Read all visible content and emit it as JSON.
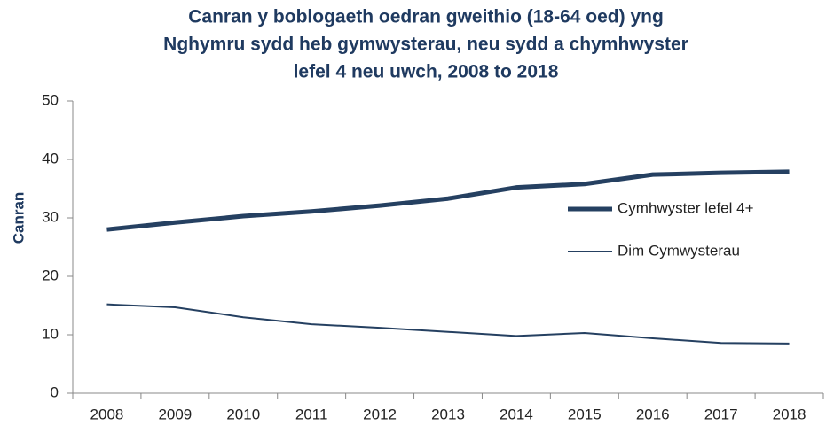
{
  "chart_data": {
    "type": "line",
    "title": [
      "Canran y boblogaeth oedran gweithio (18-64 oed) yng",
      "Nghymru sydd heb gymwysterau, neu sydd a chymhwyster",
      "lefel 4 neu uwch, 2008 to 2018"
    ],
    "ylabel": "Canran",
    "categories": [
      "2008",
      "2009",
      "2010",
      "2011",
      "2012",
      "2013",
      "2014",
      "2015",
      "2016",
      "2017",
      "2018"
    ],
    "series": [
      {
        "name": "Cymhwyster lefel 4+",
        "color": "#254061",
        "width": 5,
        "values": [
          28.0,
          29.2,
          30.3,
          31.1,
          32.1,
          33.3,
          35.2,
          35.8,
          37.4,
          37.7,
          37.9
        ]
      },
      {
        "name": "Dim Cymwysterau",
        "color": "#254061",
        "width": 2,
        "values": [
          15.2,
          14.7,
          13.0,
          11.8,
          11.2,
          10.5,
          9.8,
          10.3,
          9.4,
          8.6,
          8.5
        ]
      }
    ],
    "ylim": [
      0,
      50
    ],
    "yticks": [
      0,
      10,
      20,
      30,
      40,
      50
    ],
    "grid": false
  }
}
